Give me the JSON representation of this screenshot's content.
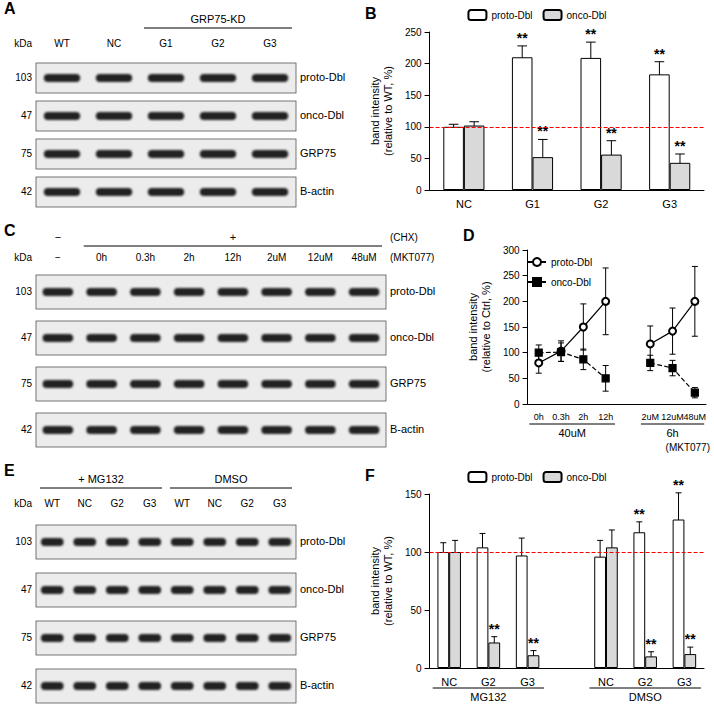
{
  "blots": [
    {
      "panel": "A",
      "kda_label": "kDa",
      "headers": [
        {
          "text": null,
          "span": 2
        },
        {
          "text": "GRP75-KD",
          "span": 3
        }
      ],
      "lanes": [
        "WT",
        "NC",
        "G1",
        "G2",
        "G3"
      ],
      "rows": [
        {
          "name": "proto-Dbl",
          "kda": 103
        },
        {
          "name": "onco-Dbl",
          "kda": 47
        },
        {
          "name": "GRP75",
          "kda": 75
        },
        {
          "name": "B-actin",
          "kda": 42
        }
      ]
    },
    {
      "panel": "C",
      "kda_label": "kDa",
      "headers": [
        {
          "text": "−",
          "span": 1
        },
        {
          "text": "+",
          "span": 7
        }
      ],
      "header_note": "(CHX)",
      "lanes": [
        "−",
        "0h",
        "0.3h",
        "2h",
        "12h",
        "2uM",
        "12uM",
        "48uM"
      ],
      "lane_note": "(MKT077)",
      "rows": [
        {
          "name": "proto-Dbl",
          "kda": 103
        },
        {
          "name": "onco-Dbl",
          "kda": 47
        },
        {
          "name": "GRP75",
          "kda": 75
        },
        {
          "name": "B-actin",
          "kda": 42
        }
      ]
    },
    {
      "panel": "E",
      "kda_label": "kDa",
      "headers": [
        {
          "text": "+ MG132",
          "span": 4
        },
        {
          "text": "DMSO",
          "span": 4
        }
      ],
      "lanes": [
        "WT",
        "NC",
        "G2",
        "G3",
        "WT",
        "NC",
        "G2",
        "G3"
      ],
      "rows": [
        {
          "name": "proto-Dbl",
          "kda": 103
        },
        {
          "name": "onco-Dbl",
          "kda": 47
        },
        {
          "name": "GRP75",
          "kda": 75
        },
        {
          "name": "B-actin",
          "kda": 42
        }
      ]
    }
  ],
  "chart_data": [
    {
      "panel": "B",
      "type": "bar",
      "categories": [
        "NC",
        "G1",
        "G2",
        "G3"
      ],
      "series": [
        {
          "name": "proto-Dbl",
          "color": "#ffffff",
          "values": [
            100,
            210,
            209,
            183
          ],
          "errors": [
            4,
            18,
            25,
            20
          ],
          "significance": [
            null,
            "**",
            "**",
            "**"
          ]
        },
        {
          "name": "onco-Dbl",
          "color": "#d9d9d9",
          "values": [
            102,
            52,
            56,
            43
          ],
          "errors": [
            6,
            28,
            22,
            14
          ],
          "significance": [
            null,
            "**",
            "**",
            "**"
          ]
        }
      ],
      "y_label": "band intensity\n(relative to WT, %)",
      "ylim": [
        0,
        250
      ],
      "yticks": [
        0,
        50,
        100,
        150,
        200,
        250
      ],
      "grid": false,
      "legend": "top",
      "reference_line": {
        "value": 100,
        "color": "#ff0000",
        "line_style": "dashed"
      }
    },
    {
      "panel": "D",
      "type": "line",
      "categories": [
        "0h",
        "0.3h",
        "2h",
        "12h",
        "2uM",
        "12uM",
        "48uM"
      ],
      "x_groups": [
        {
          "label": "40uM",
          "count": 4
        },
        {
          "label": "6h",
          "count": 3
        }
      ],
      "x_note": "(MKT077)",
      "series": [
        {
          "name": "proto-Dbl",
          "color": "#000000",
          "marker": "open-circle",
          "line_style": "solid",
          "values": [
            80,
            103,
            150,
            200,
            117,
            142,
            200
          ],
          "errors": [
            20,
            20,
            45,
            65,
            35,
            45,
            68
          ]
        },
        {
          "name": "onco-Dbl",
          "color": "#000000",
          "marker": "square",
          "line_style": "dashed",
          "values": [
            100,
            101,
            87,
            50,
            80,
            70,
            22
          ],
          "errors": [
            15,
            18,
            20,
            25,
            15,
            15,
            10
          ]
        }
      ],
      "y_label": "band intensity\n(relative to Ctrl, %)",
      "ylim": [
        0,
        300
      ],
      "yticks": [
        0,
        50,
        100,
        150,
        200,
        250,
        300
      ],
      "grid": false,
      "legend": "upper left"
    },
    {
      "panel": "F",
      "type": "bar",
      "categories": [
        "NC",
        "G2",
        "G3",
        "NC",
        "G2",
        "G3"
      ],
      "x_groups": [
        {
          "label": "MG132",
          "count": 3
        },
        {
          "label": "DMSO",
          "count": 3
        }
      ],
      "series": [
        {
          "name": "proto-Dbl",
          "color": "#ffffff",
          "values": [
            100,
            104,
            97,
            96,
            117,
            128
          ],
          "errors": [
            8,
            12,
            15,
            14,
            9,
            23
          ],
          "significance": [
            null,
            null,
            null,
            null,
            "**",
            "**"
          ]
        },
        {
          "name": "onco-Dbl",
          "color": "#d9d9d9",
          "values": [
            100,
            22,
            11,
            104,
            10,
            12
          ],
          "errors": [
            10,
            5,
            4,
            15,
            4,
            6
          ],
          "significance": [
            null,
            "**",
            "**",
            null,
            "**",
            "**"
          ]
        }
      ],
      "y_label": "band intensity\n(relative to WT, %)",
      "ylim": [
        0,
        150
      ],
      "yticks": [
        0,
        50,
        100,
        150
      ],
      "grid": false,
      "legend": "top",
      "reference_line": {
        "value": 100,
        "color": "#ff0000",
        "line_style": "dashed"
      }
    }
  ]
}
